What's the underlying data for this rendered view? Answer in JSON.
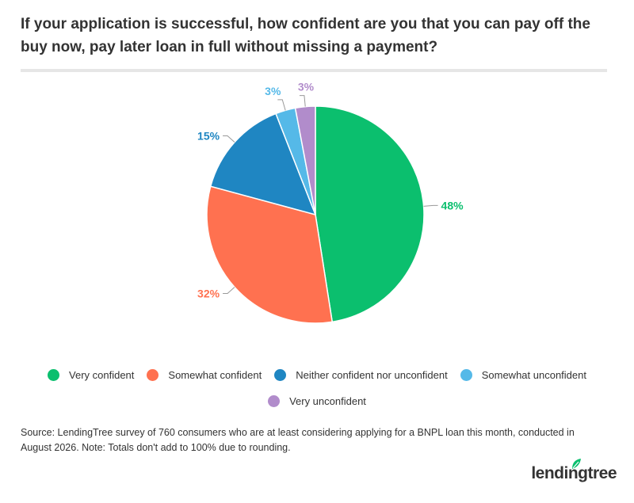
{
  "header": {
    "title": "If your application is successful, how confident are you that you can pay off the buy now, pay later loan in full without missing a payment?"
  },
  "chart_data": {
    "type": "pie",
    "title": "If your application is successful, how confident are you that you can pay off the buy now, pay later loan in full without missing a payment?",
    "categories": [
      "Very confident",
      "Somewhat confident",
      "Neither confident nor unconfident",
      "Somewhat unconfident",
      "Very unconfident"
    ],
    "values": [
      48,
      32,
      15,
      3,
      3
    ],
    "labels": [
      "48%",
      "32%",
      "15%",
      "3%",
      "3%"
    ],
    "colors": [
      "#0bbf6e",
      "#ff7150",
      "#1f86c2",
      "#55b9e8",
      "#b18ccb"
    ],
    "legend_position": "bottom"
  },
  "footer": {
    "source": "Source: LendingTree survey of 760 consumers who are at least considering applying for a BNPL loan this month, conducted in August 2026. Note: Totals don't add to 100% due to rounding.",
    "brand": "lendingtree",
    "brand_color": "#0bbf6e"
  }
}
